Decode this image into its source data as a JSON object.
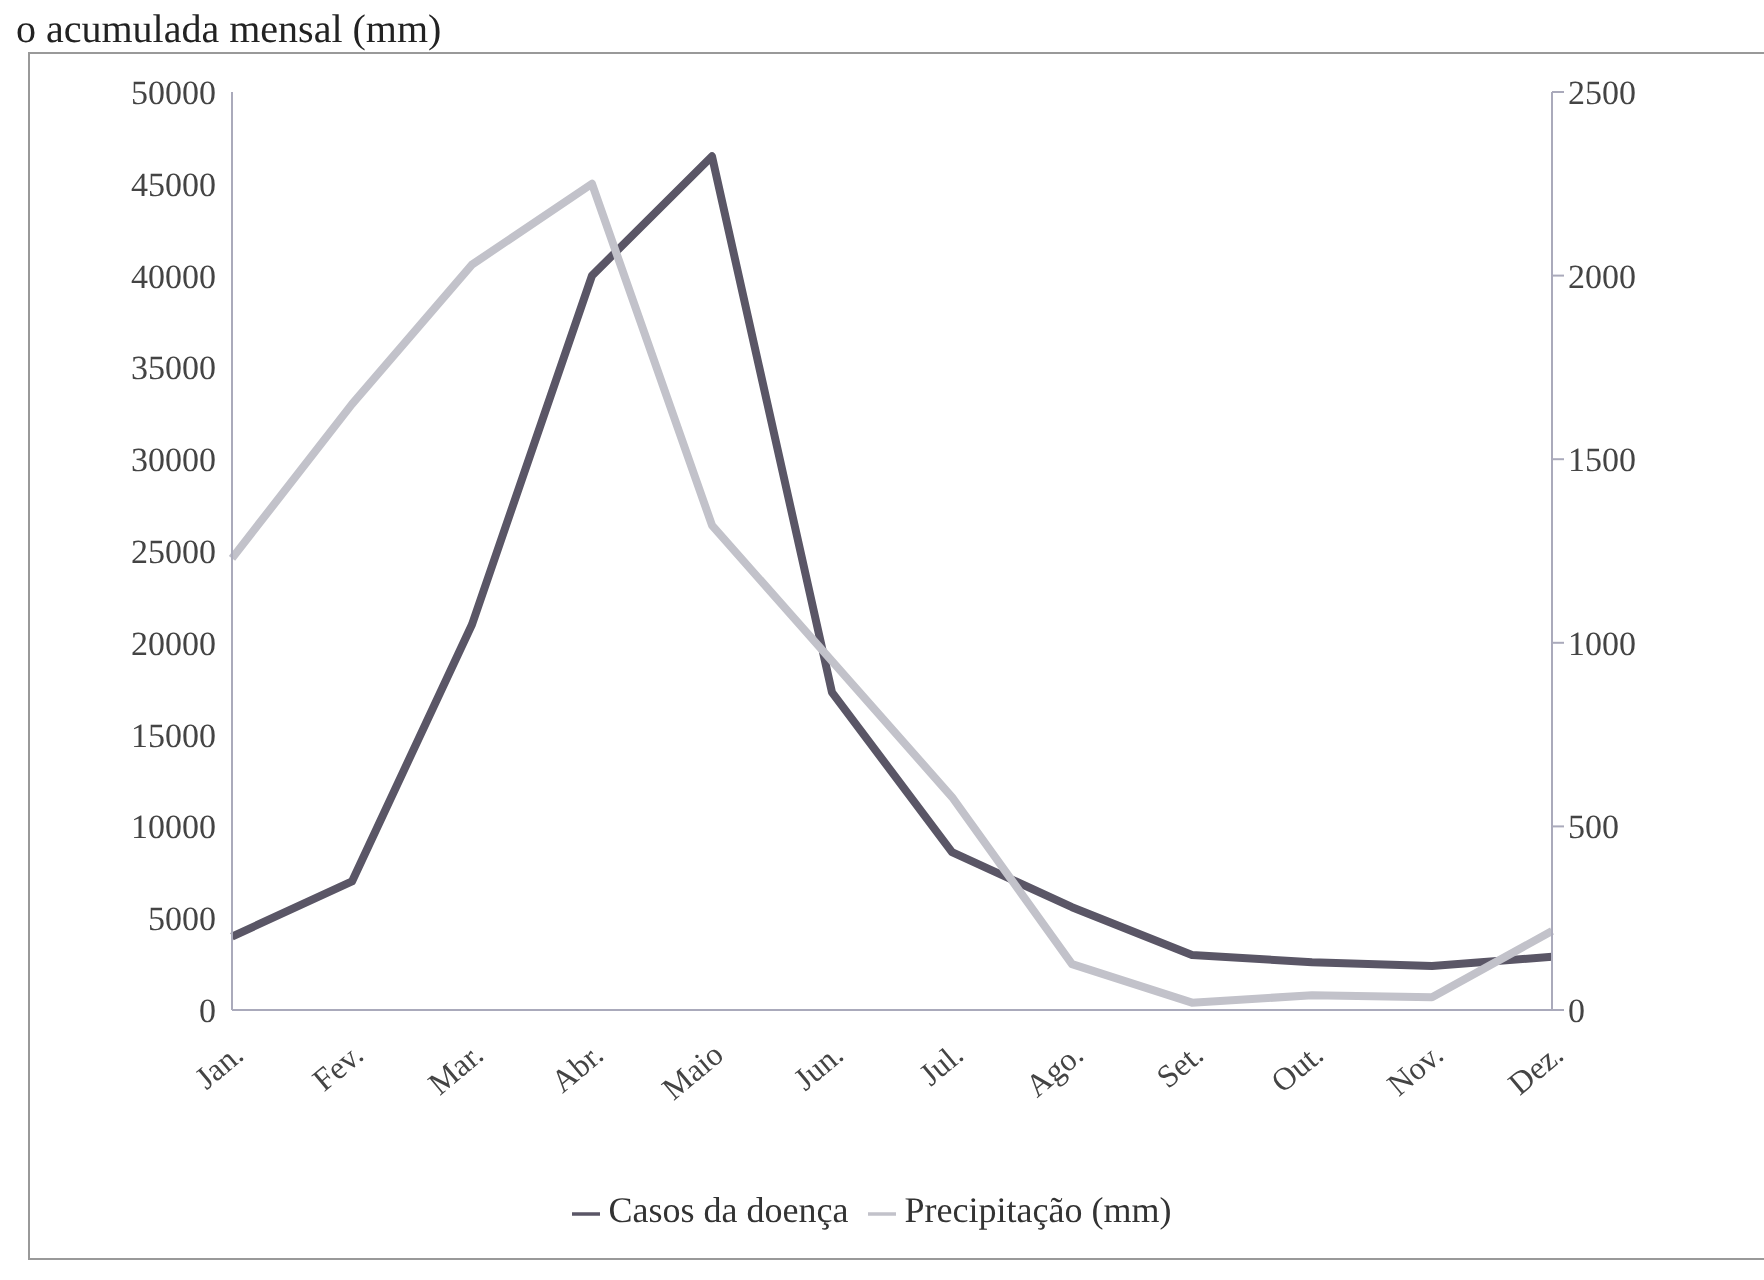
{
  "chart_data": {
    "type": "line",
    "title": "o acumulada mensal (mm)",
    "categories": [
      "Jan.",
      "Fev.",
      "Mar.",
      "Abr.",
      "Maio",
      "Jun.",
      "Jul.",
      "Ago.",
      "Set.",
      "Out.",
      "Nov.",
      "Dez."
    ],
    "series": [
      {
        "name": "Casos da doença",
        "color": "#5a5666",
        "values": [
          4000,
          7000,
          21000,
          40000,
          46500,
          17300,
          8600,
          5600,
          3000,
          2600,
          2400,
          2900
        ]
      },
      {
        "name": "Precipitação (mm)",
        "color": "#c2c2ca",
        "axis": "y2",
        "values": [
          1230,
          1650,
          2030,
          2250,
          1320,
          950,
          580,
          125,
          20,
          40,
          35,
          215
        ]
      }
    ],
    "ylim": [
      0,
      50000
    ],
    "yticks": [
      0,
      5000,
      10000,
      15000,
      20000,
      25000,
      30000,
      35000,
      40000,
      45000,
      50000
    ],
    "y2lim": [
      0,
      2500
    ],
    "y2ticks": [
      0,
      500,
      1000,
      1500,
      2000,
      2500
    ],
    "grid": false,
    "legend": "bottom",
    "marker": "none",
    "line_style": "solid"
  }
}
